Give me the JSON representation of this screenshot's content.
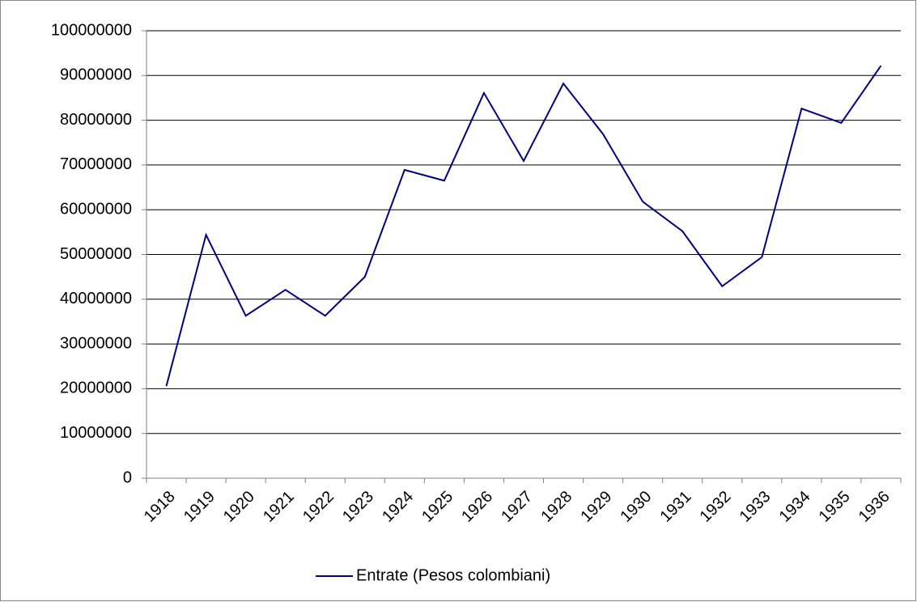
{
  "chart_data": {
    "type": "line",
    "categories": [
      "1918",
      "1919",
      "1920",
      "1921",
      "1922",
      "1923",
      "1924",
      "1925",
      "1926",
      "1927",
      "1928",
      "1929",
      "1930",
      "1931",
      "1932",
      "1933",
      "1934",
      "1935",
      "1936"
    ],
    "series": [
      {
        "name": "Entrate (Pesos colombiani)",
        "color": "#000080",
        "values": [
          20600000,
          54400000,
          36300000,
          42100000,
          36300000,
          45000000,
          68900000,
          66500000,
          86100000,
          70900000,
          88200000,
          76900000,
          61800000,
          55200000,
          42900000,
          49400000,
          82600000,
          79400000,
          92200000
        ]
      }
    ],
    "ylim": [
      0,
      100000000
    ],
    "yticks": [
      0,
      10000000,
      20000000,
      30000000,
      40000000,
      50000000,
      60000000,
      70000000,
      80000000,
      90000000,
      100000000
    ],
    "grid": true,
    "legend": "bottom"
  }
}
